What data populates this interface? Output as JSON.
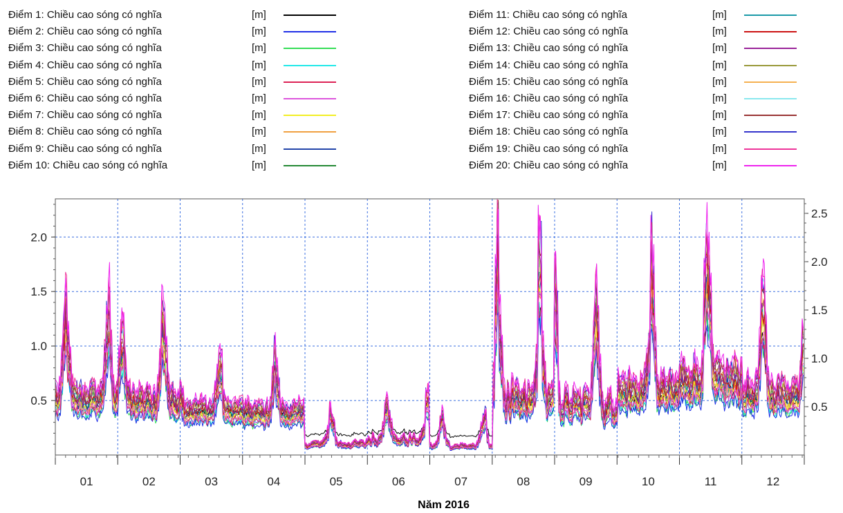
{
  "legend": [
    {
      "label": "Điểm 1: Chiều cao sóng có nghĩa",
      "unit": "[m]",
      "color": "#000000"
    },
    {
      "label": "Điểm 2: Chiều cao sóng có nghĩa",
      "unit": "[m]",
      "color": "#1f2fe6"
    },
    {
      "label": "Điểm 3: Chiều cao sóng có nghĩa",
      "unit": "[m]",
      "color": "#33dd55"
    },
    {
      "label": "Điểm 4: Chiều cao sóng có nghĩa",
      "unit": "[m]",
      "color": "#22e8e8"
    },
    {
      "label": "Điểm 5: Chiều cao sóng có nghĩa",
      "unit": "[m]",
      "color": "#dd2255"
    },
    {
      "label": "Điểm 6: Chiều cao sóng có nghĩa",
      "unit": "[m]",
      "color": "#dd55dd"
    },
    {
      "label": "Điểm 7: Chiều cao sóng có nghĩa",
      "unit": "[m]",
      "color": "#f2ee22"
    },
    {
      "label": "Điểm 8: Chiều cao sóng có nghĩa",
      "unit": "[m]",
      "color": "#f0a040"
    },
    {
      "label": "Điểm 9: Chiều cao sóng có nghĩa",
      "unit": "[m]",
      "color": "#2244aa"
    },
    {
      "label": "Điểm 10: Chiều cao sóng có nghĩa",
      "unit": "[m]",
      "color": "#228833"
    },
    {
      "label": "Điểm 11: Chiều cao sóng có nghĩa",
      "unit": "[m]",
      "color": "#1a9aa8"
    },
    {
      "label": "Điểm 12: Chiều cao sóng có nghĩa",
      "unit": "[m]",
      "color": "#cc1111"
    },
    {
      "label": "Điểm 13: Chiều cao sóng có nghĩa",
      "unit": "[m]",
      "color": "#992299"
    },
    {
      "label": "Điểm 14: Chiều cao sóng có nghĩa",
      "unit": "[m]",
      "color": "#99993a"
    },
    {
      "label": "Điểm 15: Chiều cao sóng có nghĩa",
      "unit": "[m]",
      "color": "#f5b050"
    },
    {
      "label": "Điểm 16: Chiều cao sóng có nghĩa",
      "unit": "[m]",
      "color": "#88e8ee"
    },
    {
      "label": "Điểm 17: Chiều cao sóng có nghĩa",
      "unit": "[m]",
      "color": "#993333"
    },
    {
      "label": "Điểm 18: Chiều cao sóng có nghĩa",
      "unit": "[m]",
      "color": "#3333cc"
    },
    {
      "label": "Điểm 19: Chiều cao sóng có nghĩa",
      "unit": "[m]",
      "color": "#ee3399"
    },
    {
      "label": "Điểm 20: Chiều cao sóng có nghĩa",
      "unit": "[m]",
      "color": "#ee22ee"
    }
  ],
  "chart_data": {
    "type": "line",
    "xlabel": "Năm 2016",
    "categories": [
      "01",
      "02",
      "03",
      "04",
      "05",
      "06",
      "07",
      "08",
      "09",
      "10",
      "11",
      "12"
    ],
    "y_left": {
      "ylim": [
        0,
        2.35
      ],
      "ticks": [
        "0.5",
        "1.0",
        "1.5",
        "2.0"
      ]
    },
    "y_right": {
      "ylim": [
        0,
        2.65
      ],
      "ticks": [
        "0.5",
        "1.0",
        "1.5",
        "2.0",
        "2.5"
      ]
    },
    "grid": true,
    "legend_position": "top",
    "envelope": {
      "x": [
        "01",
        "02",
        "03",
        "04",
        "05",
        "06",
        "07",
        "08",
        "09",
        "10",
        "11",
        "12"
      ],
      "min": [
        0.35,
        0.3,
        0.35,
        0.3,
        0.0,
        0.0,
        0.0,
        0.15,
        0.1,
        0.35,
        0.45,
        0.4
      ],
      "max": [
        1.75,
        1.75,
        1.1,
        1.12,
        0.6,
        0.85,
        0.5,
        2.35,
        2.3,
        2.15,
        2.35,
        1.8
      ]
    }
  }
}
